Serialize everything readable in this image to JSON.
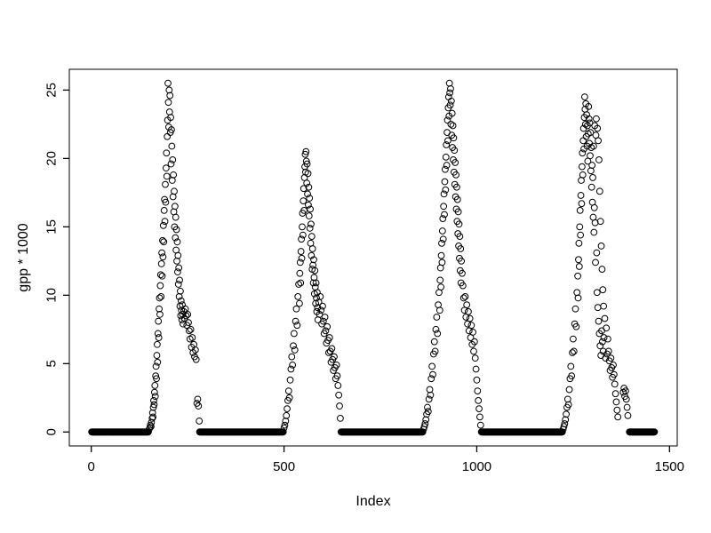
{
  "figure": {
    "background": "#ffffff",
    "foreground": "#000000"
  },
  "chart_data": {
    "type": "scatter",
    "title": "",
    "xlabel": "Index",
    "ylabel": "gpp * 1000",
    "xlim": [
      -57,
      1520
    ],
    "ylim": [
      -1.02,
      26.52
    ],
    "x_ticks": [
      0,
      500,
      1000,
      1500
    ],
    "y_ticks": [
      0,
      5,
      10,
      15,
      20,
      25
    ],
    "grid": false,
    "legend": false,
    "marker": {
      "shape": "open-circle",
      "radius_px": 3.4,
      "color": "#000000"
    },
    "zero_runs": [
      [
        1,
        148
      ],
      [
        281,
        498
      ],
      [
        648,
        860
      ],
      [
        1012,
        1222
      ],
      [
        1396,
        1461
      ]
    ],
    "points": [
      [
        150,
        0.2
      ],
      [
        152,
        0.3
      ],
      [
        153,
        0.5
      ],
      [
        155,
        0.4
      ],
      [
        156,
        0.7
      ],
      [
        158,
        1.0
      ],
      [
        159,
        1.4
      ],
      [
        160,
        1.1
      ],
      [
        161,
        1.8
      ],
      [
        162,
        2.3
      ],
      [
        163,
        2.0
      ],
      [
        164,
        2.9
      ],
      [
        165,
        3.4
      ],
      [
        166,
        2.6
      ],
      [
        167,
        4.1
      ],
      [
        168,
        4.8
      ],
      [
        169,
        3.9
      ],
      [
        170,
        5.6
      ],
      [
        171,
        6.4
      ],
      [
        172,
        5.1
      ],
      [
        173,
        7.2
      ],
      [
        174,
        8.1
      ],
      [
        175,
        6.9
      ],
      [
        176,
        9.0
      ],
      [
        177,
        9.8
      ],
      [
        178,
        8.6
      ],
      [
        179,
        10.7
      ],
      [
        180,
        11.5
      ],
      [
        181,
        9.9
      ],
      [
        182,
        12.3
      ],
      [
        183,
        13.1
      ],
      [
        184,
        11.4
      ],
      [
        185,
        14.0
      ],
      [
        186,
        12.8
      ],
      [
        187,
        15.1
      ],
      [
        188,
        13.9
      ],
      [
        189,
        16.2
      ],
      [
        190,
        17.0
      ],
      [
        191,
        15.4
      ],
      [
        192,
        18.1
      ],
      [
        193,
        16.8
      ],
      [
        194,
        19.3
      ],
      [
        195,
        20.4
      ],
      [
        196,
        18.7
      ],
      [
        197,
        21.6
      ],
      [
        198,
        22.8
      ],
      [
        199,
        25.5
      ],
      [
        200,
        24.1
      ],
      [
        201,
        22.3
      ],
      [
        202,
        25.0
      ],
      [
        203,
        23.4
      ],
      [
        204,
        24.6
      ],
      [
        205,
        21.9
      ],
      [
        206,
        23.0
      ],
      [
        207,
        19.6
      ],
      [
        208,
        22.1
      ],
      [
        209,
        20.9
      ],
      [
        210,
        18.4
      ],
      [
        211,
        19.9
      ],
      [
        212,
        17.2
      ],
      [
        213,
        18.8
      ],
      [
        214,
        16.1
      ],
      [
        215,
        17.6
      ],
      [
        216,
        15.0
      ],
      [
        217,
        16.5
      ],
      [
        218,
        14.2
      ],
      [
        219,
        15.7
      ],
      [
        220,
        13.3
      ],
      [
        221,
        14.8
      ],
      [
        222,
        12.5
      ],
      [
        223,
        13.9
      ],
      [
        224,
        11.7
      ],
      [
        225,
        12.9
      ],
      [
        226,
        10.8
      ],
      [
        227,
        12.0
      ],
      [
        228,
        9.9
      ],
      [
        229,
        11.1
      ],
      [
        230,
        9.2
      ],
      [
        231,
        10.3
      ],
      [
        232,
        8.5
      ],
      [
        233,
        9.6
      ],
      [
        234,
        8.9
      ],
      [
        235,
        8.2
      ],
      [
        236,
        9.3
      ],
      [
        237,
        8.6
      ],
      [
        238,
        7.9
      ],
      [
        240,
        8.8
      ],
      [
        242,
        8.3
      ],
      [
        244,
        9.0
      ],
      [
        246,
        8.5
      ],
      [
        248,
        7.8
      ],
      [
        250,
        8.6
      ],
      [
        252,
        8.0
      ],
      [
        254,
        7.4
      ],
      [
        256,
        6.8
      ],
      [
        258,
        7.5
      ],
      [
        260,
        6.2
      ],
      [
        262,
        6.9
      ],
      [
        264,
        5.8
      ],
      [
        266,
        6.4
      ],
      [
        268,
        5.5
      ],
      [
        270,
        6.0
      ],
      [
        272,
        5.3
      ],
      [
        274,
        2.1
      ],
      [
        276,
        2.4
      ],
      [
        278,
        1.9
      ],
      [
        280,
        0.8
      ],
      [
        500,
        0.3
      ],
      [
        502,
        0.5
      ],
      [
        504,
        0.8
      ],
      [
        506,
        1.2
      ],
      [
        508,
        1.7
      ],
      [
        510,
        2.3
      ],
      [
        512,
        3.0
      ],
      [
        514,
        2.5
      ],
      [
        516,
        3.8
      ],
      [
        518,
        4.6
      ],
      [
        520,
        5.5
      ],
      [
        522,
        4.9
      ],
      [
        524,
        6.3
      ],
      [
        526,
        7.2
      ],
      [
        528,
        6.0
      ],
      [
        530,
        8.1
      ],
      [
        532,
        9.0
      ],
      [
        534,
        7.8
      ],
      [
        536,
        9.9
      ],
      [
        538,
        10.8
      ],
      [
        540,
        9.4
      ],
      [
        541,
        11.6
      ],
      [
        542,
        12.4
      ],
      [
        543,
        10.9
      ],
      [
        544,
        13.2
      ],
      [
        545,
        14.1
      ],
      [
        546,
        12.7
      ],
      [
        547,
        15.0
      ],
      [
        548,
        16.0
      ],
      [
        549,
        14.4
      ],
      [
        550,
        16.9
      ],
      [
        551,
        17.8
      ],
      [
        552,
        16.2
      ],
      [
        553,
        18.6
      ],
      [
        554,
        19.4
      ],
      [
        555,
        20.3
      ],
      [
        556,
        19.0
      ],
      [
        557,
        20.5
      ],
      [
        558,
        19.8
      ],
      [
        559,
        18.2
      ],
      [
        560,
        19.6
      ],
      [
        561,
        17.4
      ],
      [
        562,
        18.9
      ],
      [
        563,
        16.6
      ],
      [
        564,
        17.9
      ],
      [
        565,
        15.8
      ],
      [
        566,
        17.1
      ],
      [
        567,
        14.9
      ],
      [
        568,
        16.3
      ],
      [
        569,
        13.8
      ],
      [
        570,
        15.2
      ],
      [
        571,
        12.9
      ],
      [
        572,
        14.3
      ],
      [
        573,
        11.9
      ],
      [
        574,
        13.4
      ],
      [
        575,
        12.2
      ],
      [
        576,
        10.9
      ],
      [
        577,
        12.6
      ],
      [
        578,
        11.3
      ],
      [
        579,
        10.1
      ],
      [
        580,
        11.8
      ],
      [
        581,
        10.6
      ],
      [
        582,
        9.4
      ],
      [
        583,
        10.9
      ],
      [
        584,
        9.8
      ],
      [
        585,
        8.8
      ],
      [
        586,
        10.2
      ],
      [
        587,
        9.1
      ],
      [
        588,
        8.2
      ],
      [
        590,
        9.5
      ],
      [
        592,
        8.6
      ],
      [
        594,
        9.9
      ],
      [
        596,
        8.9
      ],
      [
        598,
        7.9
      ],
      [
        600,
        9.2
      ],
      [
        602,
        8.1
      ],
      [
        604,
        7.2
      ],
      [
        606,
        8.4
      ],
      [
        608,
        7.4
      ],
      [
        610,
        6.5
      ],
      [
        612,
        7.7
      ],
      [
        614,
        6.7
      ],
      [
        616,
        5.8
      ],
      [
        618,
        6.9
      ],
      [
        620,
        5.9
      ],
      [
        622,
        5.1
      ],
      [
        624,
        6.1
      ],
      [
        626,
        5.3
      ],
      [
        628,
        4.5
      ],
      [
        630,
        5.5
      ],
      [
        632,
        4.7
      ],
      [
        634,
        3.9
      ],
      [
        636,
        4.9
      ],
      [
        638,
        4.1
      ],
      [
        640,
        3.4
      ],
      [
        642,
        2.7
      ],
      [
        644,
        1.9
      ],
      [
        646,
        1.0
      ],
      [
        862,
        0.2
      ],
      [
        864,
        0.4
      ],
      [
        866,
        0.6
      ],
      [
        868,
        0.9
      ],
      [
        870,
        1.3
      ],
      [
        872,
        1.8
      ],
      [
        874,
        1.5
      ],
      [
        876,
        2.4
      ],
      [
        878,
        3.1
      ],
      [
        880,
        2.7
      ],
      [
        882,
        3.9
      ],
      [
        884,
        4.8
      ],
      [
        886,
        4.2
      ],
      [
        888,
        5.7
      ],
      [
        890,
        6.6
      ],
      [
        892,
        5.9
      ],
      [
        894,
        7.5
      ],
      [
        896,
        8.4
      ],
      [
        898,
        7.2
      ],
      [
        900,
        9.3
      ],
      [
        902,
        10.2
      ],
      [
        904,
        8.9
      ],
      [
        905,
        11.1
      ],
      [
        906,
        12.0
      ],
      [
        907,
        10.6
      ],
      [
        908,
        12.9
      ],
      [
        909,
        13.8
      ],
      [
        910,
        12.4
      ],
      [
        911,
        14.7
      ],
      [
        912,
        15.6
      ],
      [
        913,
        14.1
      ],
      [
        914,
        16.5
      ],
      [
        915,
        17.4
      ],
      [
        916,
        15.9
      ],
      [
        917,
        18.3
      ],
      [
        918,
        19.2
      ],
      [
        919,
        17.7
      ],
      [
        920,
        20.1
      ],
      [
        921,
        21.0
      ],
      [
        922,
        19.5
      ],
      [
        923,
        21.9
      ],
      [
        924,
        22.8
      ],
      [
        925,
        21.3
      ],
      [
        926,
        23.7
      ],
      [
        927,
        24.5
      ],
      [
        928,
        23.1
      ],
      [
        929,
        25.5
      ],
      [
        930,
        24.8
      ],
      [
        931,
        23.9
      ],
      [
        932,
        25.1
      ],
      [
        933,
        22.5
      ],
      [
        934,
        24.2
      ],
      [
        935,
        21.7
      ],
      [
        936,
        23.3
      ],
      [
        937,
        20.8
      ],
      [
        938,
        22.4
      ],
      [
        939,
        19.9
      ],
      [
        940,
        21.5
      ],
      [
        941,
        19.0
      ],
      [
        942,
        20.6
      ],
      [
        943,
        18.1
      ],
      [
        944,
        19.7
      ],
      [
        945,
        17.2
      ],
      [
        946,
        18.8
      ],
      [
        947,
        16.3
      ],
      [
        948,
        17.9
      ],
      [
        949,
        15.4
      ],
      [
        950,
        17.0
      ],
      [
        951,
        14.5
      ],
      [
        952,
        16.1
      ],
      [
        953,
        13.6
      ],
      [
        954,
        15.2
      ],
      [
        955,
        12.7
      ],
      [
        956,
        14.3
      ],
      [
        957,
        11.8
      ],
      [
        958,
        13.4
      ],
      [
        959,
        10.9
      ],
      [
        960,
        12.5
      ],
      [
        962,
        11.6
      ],
      [
        964,
        10.7
      ],
      [
        966,
        9.8
      ],
      [
        968,
        8.9
      ],
      [
        970,
        9.9
      ],
      [
        972,
        8.4
      ],
      [
        974,
        9.3
      ],
      [
        976,
        7.9
      ],
      [
        978,
        8.8
      ],
      [
        980,
        7.4
      ],
      [
        982,
        8.3
      ],
      [
        984,
        6.9
      ],
      [
        986,
        7.8
      ],
      [
        988,
        6.4
      ],
      [
        990,
        7.3
      ],
      [
        992,
        5.9
      ],
      [
        994,
        6.6
      ],
      [
        996,
        5.4
      ],
      [
        998,
        4.6
      ],
      [
        1000,
        3.8
      ],
      [
        1002,
        3.0
      ],
      [
        1004,
        2.3
      ],
      [
        1006,
        1.7
      ],
      [
        1008,
        1.1
      ],
      [
        1010,
        0.5
      ],
      [
        1224,
        0.2
      ],
      [
        1226,
        0.4
      ],
      [
        1228,
        0.6
      ],
      [
        1230,
        0.9
      ],
      [
        1232,
        1.3
      ],
      [
        1234,
        1.8
      ],
      [
        1236,
        2.4
      ],
      [
        1238,
        2.0
      ],
      [
        1240,
        3.1
      ],
      [
        1242,
        3.9
      ],
      [
        1244,
        4.8
      ],
      [
        1246,
        4.1
      ],
      [
        1248,
        5.8
      ],
      [
        1250,
        6.8
      ],
      [
        1252,
        5.9
      ],
      [
        1254,
        7.9
      ],
      [
        1256,
        9.0
      ],
      [
        1258,
        7.7
      ],
      [
        1260,
        10.2
      ],
      [
        1262,
        11.4
      ],
      [
        1263,
        9.8
      ],
      [
        1264,
        12.6
      ],
      [
        1265,
        13.8
      ],
      [
        1266,
        12.1
      ],
      [
        1267,
        15.0
      ],
      [
        1268,
        16.2
      ],
      [
        1269,
        14.4
      ],
      [
        1270,
        17.3
      ],
      [
        1271,
        18.4
      ],
      [
        1272,
        16.7
      ],
      [
        1273,
        19.4
      ],
      [
        1274,
        20.4
      ],
      [
        1275,
        18.8
      ],
      [
        1276,
        21.3
      ],
      [
        1277,
        22.2
      ],
      [
        1278,
        20.7
      ],
      [
        1279,
        23.0
      ],
      [
        1280,
        24.5
      ],
      [
        1281,
        23.6
      ],
      [
        1282,
        22.5
      ],
      [
        1283,
        24.0
      ],
      [
        1284,
        21.6
      ],
      [
        1285,
        23.2
      ],
      [
        1286,
        20.9
      ],
      [
        1287,
        22.4
      ],
      [
        1288,
        19.8
      ],
      [
        1289,
        21.8
      ],
      [
        1290,
        23.8
      ],
      [
        1291,
        22.9
      ],
      [
        1292,
        21.1
      ],
      [
        1293,
        22.6
      ],
      [
        1294,
        20.2
      ],
      [
        1295,
        21.9
      ],
      [
        1296,
        19.1
      ],
      [
        1297,
        20.8
      ],
      [
        1298,
        17.9
      ],
      [
        1299,
        19.5
      ],
      [
        1300,
        16.8
      ],
      [
        1301,
        18.6
      ],
      [
        1302,
        15.7
      ],
      [
        1303,
        20.9
      ],
      [
        1304,
        14.6
      ],
      [
        1305,
        16.4
      ],
      [
        1306,
        22.4
      ],
      [
        1307,
        15.3
      ],
      [
        1308,
        12.4
      ],
      [
        1309,
        21.7
      ],
      [
        1310,
        22.9
      ],
      [
        1311,
        13.1
      ],
      [
        1312,
        10.2
      ],
      [
        1313,
        22.2
      ],
      [
        1314,
        9.1
      ],
      [
        1315,
        21.3
      ],
      [
        1316,
        8.1
      ],
      [
        1317,
        19.9
      ],
      [
        1318,
        7.2
      ],
      [
        1319,
        17.6
      ],
      [
        1320,
        6.3
      ],
      [
        1321,
        15.4
      ],
      [
        1322,
        5.6
      ],
      [
        1323,
        13.6
      ],
      [
        1324,
        7.4
      ],
      [
        1325,
        11.9
      ],
      [
        1326,
        6.6
      ],
      [
        1327,
        10.4
      ],
      [
        1328,
        5.9
      ],
      [
        1329,
        9.2
      ],
      [
        1330,
        6.9
      ],
      [
        1332,
        8.3
      ],
      [
        1334,
        5.4
      ],
      [
        1336,
        7.6
      ],
      [
        1338,
        5.7
      ],
      [
        1340,
        6.8
      ],
      [
        1342,
        5.9
      ],
      [
        1344,
        5.2
      ],
      [
        1346,
        4.5
      ],
      [
        1348,
        5.4
      ],
      [
        1350,
        4.7
      ],
      [
        1352,
        4.0
      ],
      [
        1354,
        4.9
      ],
      [
        1356,
        4.2
      ],
      [
        1358,
        3.5
      ],
      [
        1360,
        2.8
      ],
      [
        1362,
        2.2
      ],
      [
        1364,
        1.6
      ],
      [
        1366,
        1.1
      ],
      [
        1380,
        2.9
      ],
      [
        1382,
        3.2
      ],
      [
        1384,
        2.6
      ],
      [
        1386,
        3.0
      ],
      [
        1388,
        2.4
      ],
      [
        1390,
        1.8
      ],
      [
        1392,
        1.2
      ]
    ]
  }
}
